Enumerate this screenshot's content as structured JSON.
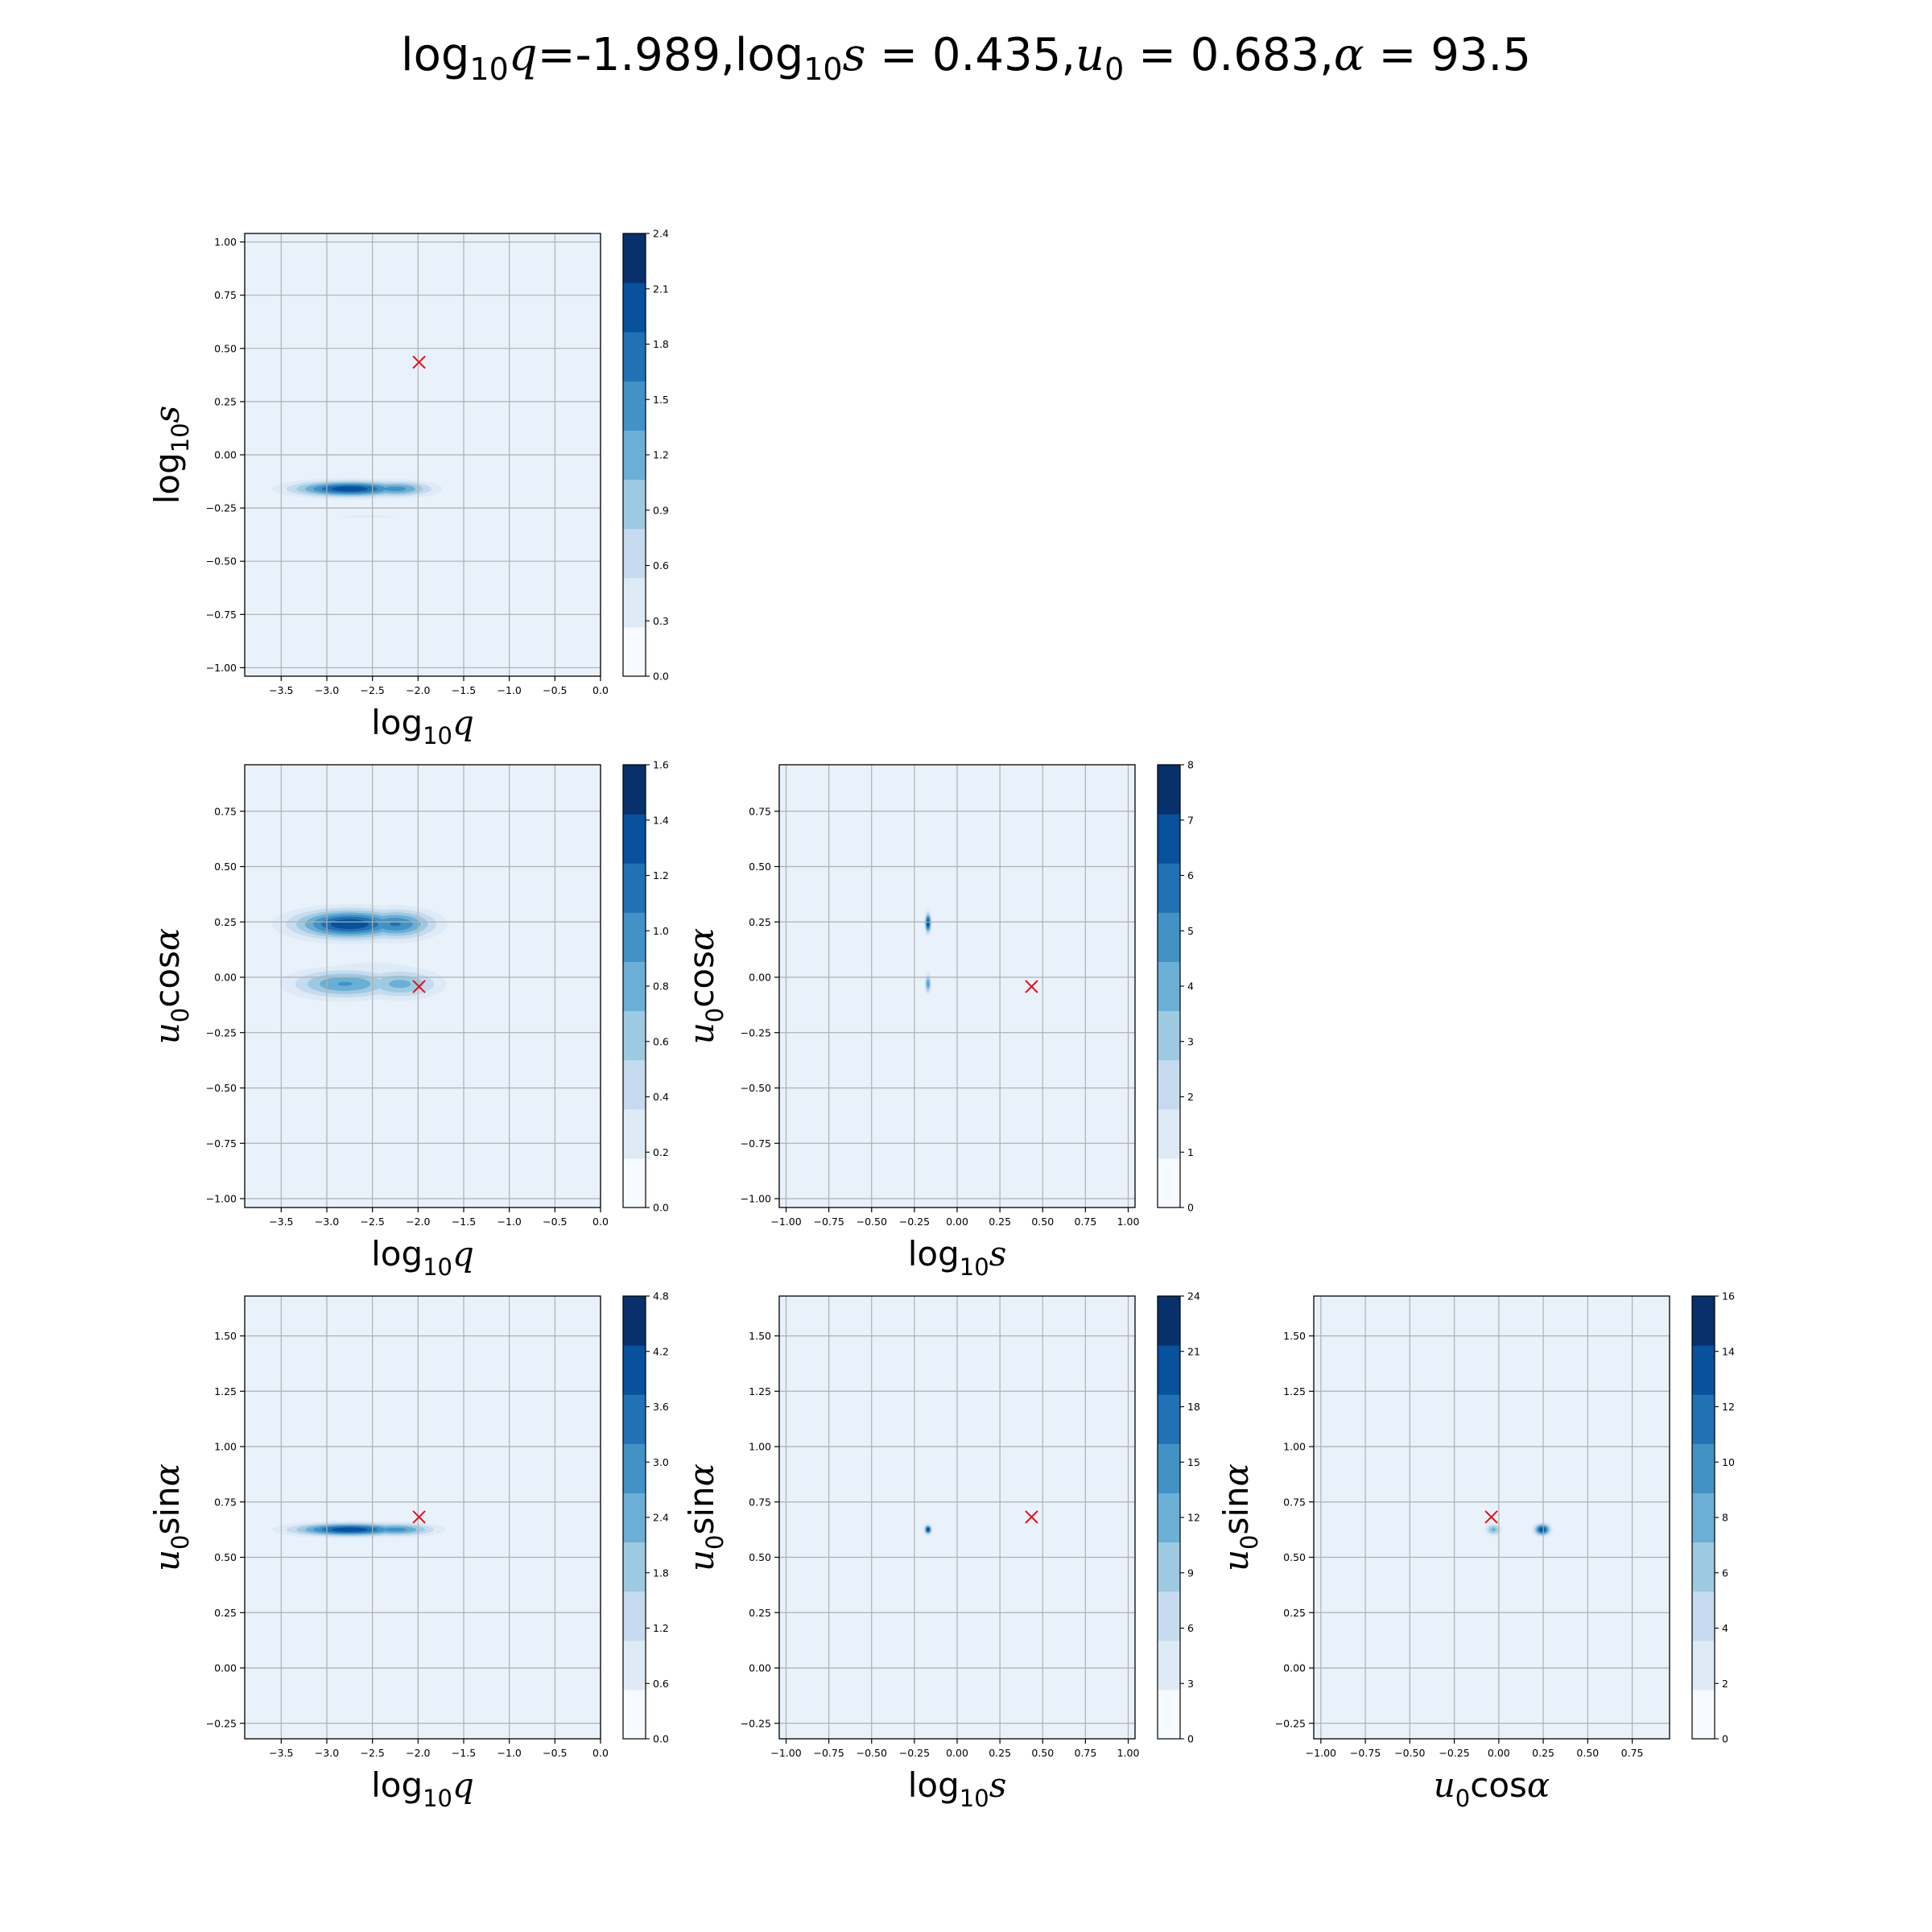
{
  "title": {
    "parts": [
      {
        "t": "log",
        "s": "n"
      },
      {
        "t": "10",
        "s": "sub"
      },
      {
        "t": "q",
        "s": "i"
      },
      {
        "t": "=-1.989,",
        "s": "n"
      },
      {
        "t": "log",
        "s": "n"
      },
      {
        "t": "10",
        "s": "sub"
      },
      {
        "t": "s",
        "s": "i"
      },
      {
        "t": " = 0.435,",
        "s": "n"
      },
      {
        "t": "u",
        "s": "i"
      },
      {
        "t": "0",
        "s": "sub"
      },
      {
        "t": " = 0.683,",
        "s": "n"
      },
      {
        "t": "α",
        "s": "i"
      },
      {
        "t": " = 93.5",
        "s": "n"
      }
    ]
  },
  "colors": {
    "levels": [
      "#f7fbff",
      "#deebf7",
      "#c6dbef",
      "#9ecae1",
      "#6baed6",
      "#4292c6",
      "#2171b5",
      "#08519c",
      "#08306b"
    ],
    "background": "#e9f1fa",
    "grid": "#b0b0b0",
    "marker": "#e0101a"
  },
  "chart_data": [
    {
      "type": "contour",
      "id": "q-s",
      "row": 0,
      "col": 0,
      "xlabel": [
        {
          "t": "log",
          "s": "n"
        },
        {
          "t": "10",
          "s": "sub"
        },
        {
          "t": "q",
          "s": "i"
        }
      ],
      "ylabel": [
        {
          "t": "log",
          "s": "n"
        },
        {
          "t": "10",
          "s": "sub"
        },
        {
          "t": "s",
          "s": "i"
        }
      ],
      "xlim": [
        -3.9,
        0.0
      ],
      "ylim": [
        -1.04,
        1.04
      ],
      "xticks": [
        -3.5,
        -3.0,
        -2.5,
        -2.0,
        -1.5,
        -1.0,
        -0.5,
        0.0
      ],
      "xticklabels": [
        "−3.5",
        "−3.0",
        "−2.5",
        "−2.0",
        "−1.5",
        "−1.0",
        "−0.5",
        "0.0"
      ],
      "yticks": [
        -1.0,
        -0.75,
        -0.5,
        -0.25,
        0.0,
        0.25,
        0.5,
        0.75,
        1.0
      ],
      "yticklabels": [
        "−1.00",
        "−0.75",
        "−0.50",
        "−0.25",
        "0.00",
        "0.25",
        "0.50",
        "0.75",
        "1.00"
      ],
      "colorbar": {
        "ticks": [
          0.0,
          0.3,
          0.6,
          0.9,
          1.2,
          1.5,
          1.8,
          2.1,
          2.4
        ],
        "ticklabels": [
          "0.0",
          "0.3",
          "0.6",
          "0.9",
          "1.2",
          "1.5",
          "1.8",
          "2.1",
          "2.4"
        ]
      },
      "blobs": [
        {
          "x": -2.75,
          "y": -0.16,
          "wx": 0.42,
          "wy": 0.025,
          "peak": 2.3
        },
        {
          "x": -2.25,
          "y": -0.16,
          "wx": 0.28,
          "wy": 0.025,
          "peak": 1.6
        },
        {
          "x": -2.55,
          "y": -0.29,
          "wx": 0.5,
          "wy": 0.008,
          "peak": 0.35
        }
      ],
      "marker": {
        "x": -1.989,
        "y": 0.435
      }
    },
    {
      "type": "contour",
      "id": "q-ucos",
      "row": 1,
      "col": 0,
      "xlabel": [
        {
          "t": "log",
          "s": "n"
        },
        {
          "t": "10",
          "s": "sub"
        },
        {
          "t": "q",
          "s": "i"
        }
      ],
      "ylabel": [
        {
          "t": "u",
          "s": "i"
        },
        {
          "t": "0",
          "s": "sub"
        },
        {
          "t": "cos",
          "s": "n"
        },
        {
          "t": "α",
          "s": "i"
        }
      ],
      "xlim": [
        -3.9,
        0.0
      ],
      "ylim": [
        -1.04,
        0.96
      ],
      "xticks": [
        -3.5,
        -3.0,
        -2.5,
        -2.0,
        -1.5,
        -1.0,
        -0.5,
        0.0
      ],
      "xticklabels": [
        "−3.5",
        "−3.0",
        "−2.5",
        "−2.0",
        "−1.5",
        "−1.0",
        "−0.5",
        "0.0"
      ],
      "yticks": [
        -1.0,
        -0.75,
        -0.5,
        -0.25,
        0.0,
        0.25,
        0.5,
        0.75
      ],
      "yticklabels": [
        "−1.00",
        "−0.75",
        "−0.50",
        "−0.25",
        "0.00",
        "0.25",
        "0.50",
        "0.75"
      ],
      "colorbar": {
        "ticks": [
          0.0,
          0.2,
          0.4,
          0.6,
          0.8,
          1.0,
          1.2,
          1.4,
          1.6
        ],
        "ticklabels": [
          "0.0",
          "0.2",
          "0.4",
          "0.6",
          "0.8",
          "1.0",
          "1.2",
          "1.4",
          "1.6"
        ]
      },
      "blobs": [
        {
          "x": -2.75,
          "y": 0.24,
          "wx": 0.42,
          "wy": 0.045,
          "peak": 1.55
        },
        {
          "x": -2.25,
          "y": 0.24,
          "wx": 0.3,
          "wy": 0.045,
          "peak": 1.2
        },
        {
          "x": -2.8,
          "y": -0.03,
          "wx": 0.4,
          "wy": 0.045,
          "peak": 1.0
        },
        {
          "x": -2.2,
          "y": -0.03,
          "wx": 0.3,
          "wy": 0.045,
          "peak": 0.85
        },
        {
          "x": -2.5,
          "y": 0.02,
          "wx": 0.55,
          "wy": 0.05,
          "peak": 0.3
        }
      ],
      "marker": {
        "x": -1.989,
        "y": -0.042
      }
    },
    {
      "type": "contour",
      "id": "s-ucos",
      "row": 1,
      "col": 1,
      "xlabel": [
        {
          "t": "log",
          "s": "n"
        },
        {
          "t": "10",
          "s": "sub"
        },
        {
          "t": "s",
          "s": "i"
        }
      ],
      "ylabel": [
        {
          "t": "u",
          "s": "i"
        },
        {
          "t": "0",
          "s": "sub"
        },
        {
          "t": "cos",
          "s": "n"
        },
        {
          "t": "α",
          "s": "i"
        }
      ],
      "xlim": [
        -1.04,
        1.04
      ],
      "ylim": [
        -1.04,
        0.96
      ],
      "xticks": [
        -1.0,
        -0.75,
        -0.5,
        -0.25,
        0.0,
        0.25,
        0.5,
        0.75,
        1.0
      ],
      "xticklabels": [
        "−1.00",
        "−0.75",
        "−0.50",
        "−0.25",
        "0.00",
        "0.25",
        "0.50",
        "0.75",
        "1.00"
      ],
      "yticks": [
        -1.0,
        -0.75,
        -0.5,
        -0.25,
        0.0,
        0.25,
        0.5,
        0.75
      ],
      "yticklabels": [
        "−1.00",
        "−0.75",
        "−0.50",
        "−0.25",
        "0.00",
        "0.25",
        "0.50",
        "0.75"
      ],
      "colorbar": {
        "ticks": [
          0,
          1,
          2,
          3,
          4,
          5,
          6,
          7,
          8
        ],
        "ticklabels": [
          "0",
          "1",
          "2",
          "3",
          "4",
          "5",
          "6",
          "7",
          "8"
        ]
      },
      "blobs": [
        {
          "x": -0.17,
          "y": 0.245,
          "wx": 0.012,
          "wy": 0.03,
          "peak": 7.8
        },
        {
          "x": -0.17,
          "y": -0.03,
          "wx": 0.012,
          "wy": 0.03,
          "peak": 5.0
        },
        {
          "x": -0.17,
          "y": 0.02,
          "wx": 0.012,
          "wy": 0.06,
          "peak": 1.0
        },
        {
          "x": -0.3,
          "y": 0.245,
          "wx": 0.004,
          "wy": 0.02,
          "peak": 0.6
        }
      ],
      "marker": {
        "x": 0.435,
        "y": -0.042
      }
    },
    {
      "type": "contour",
      "id": "q-usin",
      "row": 2,
      "col": 0,
      "xlabel": [
        {
          "t": "log",
          "s": "n"
        },
        {
          "t": "10",
          "s": "sub"
        },
        {
          "t": "q",
          "s": "i"
        }
      ],
      "ylabel": [
        {
          "t": "u",
          "s": "i"
        },
        {
          "t": "0",
          "s": "sub"
        },
        {
          "t": "sin",
          "s": "n"
        },
        {
          "t": "α",
          "s": "i"
        }
      ],
      "xlim": [
        -3.9,
        0.0
      ],
      "ylim": [
        -0.32,
        1.68
      ],
      "xticks": [
        -3.5,
        -3.0,
        -2.5,
        -2.0,
        -1.5,
        -1.0,
        -0.5,
        0.0
      ],
      "xticklabels": [
        "−3.5",
        "−3.0",
        "−2.5",
        "−2.0",
        "−1.5",
        "−1.0",
        "−0.5",
        "0.0"
      ],
      "yticks": [
        -0.25,
        0.0,
        0.25,
        0.5,
        0.75,
        1.0,
        1.25,
        1.5
      ],
      "yticklabels": [
        "−0.25",
        "0.00",
        "0.25",
        "0.50",
        "0.75",
        "1.00",
        "1.25",
        "1.50"
      ],
      "colorbar": {
        "ticks": [
          0.0,
          0.6,
          1.2,
          1.8,
          2.4,
          3.0,
          3.6,
          4.2,
          4.8
        ],
        "ticklabels": [
          "0.0",
          "0.6",
          "1.2",
          "1.8",
          "2.4",
          "3.0",
          "3.6",
          "4.2",
          "4.8"
        ]
      },
      "blobs": [
        {
          "x": -2.75,
          "y": 0.625,
          "wx": 0.42,
          "wy": 0.02,
          "peak": 4.6
        },
        {
          "x": -2.25,
          "y": 0.625,
          "wx": 0.3,
          "wy": 0.02,
          "peak": 3.2
        }
      ],
      "marker": {
        "x": -1.989,
        "y": 0.682
      }
    },
    {
      "type": "contour",
      "id": "s-usin",
      "row": 2,
      "col": 1,
      "xlabel": [
        {
          "t": "log",
          "s": "n"
        },
        {
          "t": "10",
          "s": "sub"
        },
        {
          "t": "s",
          "s": "i"
        }
      ],
      "ylabel": [
        {
          "t": "u",
          "s": "i"
        },
        {
          "t": "0",
          "s": "sub"
        },
        {
          "t": "sin",
          "s": "n"
        },
        {
          "t": "α",
          "s": "i"
        }
      ],
      "xlim": [
        -1.04,
        1.04
      ],
      "ylim": [
        -0.32,
        1.68
      ],
      "xticks": [
        -1.0,
        -0.75,
        -0.5,
        -0.25,
        0.0,
        0.25,
        0.5,
        0.75,
        1.0
      ],
      "xticklabels": [
        "−1.00",
        "−0.75",
        "−0.50",
        "−0.25",
        "0.00",
        "0.25",
        "0.50",
        "0.75",
        "1.00"
      ],
      "yticks": [
        -0.25,
        0.0,
        0.25,
        0.5,
        0.75,
        1.0,
        1.25,
        1.5
      ],
      "yticklabels": [
        "−0.25",
        "0.00",
        "0.25",
        "0.50",
        "0.75",
        "1.00",
        "1.25",
        "1.50"
      ],
      "colorbar": {
        "ticks": [
          0,
          3,
          6,
          9,
          12,
          15,
          18,
          21,
          24
        ],
        "ticklabels": [
          "0",
          "3",
          "6",
          "9",
          "12",
          "15",
          "18",
          "21",
          "24"
        ]
      },
      "blobs": [
        {
          "x": -0.17,
          "y": 0.625,
          "wx": 0.014,
          "wy": 0.014,
          "peak": 23
        },
        {
          "x": -0.3,
          "y": 0.625,
          "wx": 0.004,
          "wy": 0.01,
          "peak": 1.5
        }
      ],
      "marker": {
        "x": 0.435,
        "y": 0.682
      }
    },
    {
      "type": "contour",
      "id": "ucos-usin",
      "row": 2,
      "col": 2,
      "xlabel": [
        {
          "t": "u",
          "s": "i"
        },
        {
          "t": "0",
          "s": "sub"
        },
        {
          "t": "cos",
          "s": "n"
        },
        {
          "t": "α",
          "s": "i"
        }
      ],
      "ylabel": [
        {
          "t": "u",
          "s": "i"
        },
        {
          "t": "0",
          "s": "sub"
        },
        {
          "t": "sin",
          "s": "n"
        },
        {
          "t": "α",
          "s": "i"
        }
      ],
      "xlim": [
        -1.04,
        0.96
      ],
      "ylim": [
        -0.32,
        1.68
      ],
      "xticks": [
        -1.0,
        -0.75,
        -0.5,
        -0.25,
        0.0,
        0.25,
        0.5,
        0.75
      ],
      "xticklabels": [
        "−1.00",
        "−0.75",
        "−0.50",
        "−0.25",
        "0.00",
        "0.25",
        "0.50",
        "0.75"
      ],
      "yticks": [
        -0.25,
        0.0,
        0.25,
        0.5,
        0.75,
        1.0,
        1.25,
        1.5
      ],
      "yticklabels": [
        "−0.25",
        "0.00",
        "0.25",
        "0.50",
        "0.75",
        "1.00",
        "1.25",
        "1.50"
      ],
      "colorbar": {
        "ticks": [
          0,
          2,
          4,
          6,
          8,
          10,
          12,
          14,
          16
        ],
        "ticklabels": [
          "0",
          "2",
          "4",
          "6",
          "8",
          "10",
          "12",
          "14",
          "16"
        ]
      },
      "blobs": [
        {
          "x": 0.245,
          "y": 0.625,
          "wx": 0.03,
          "wy": 0.018,
          "peak": 15.5
        },
        {
          "x": -0.03,
          "y": 0.625,
          "wx": 0.03,
          "wy": 0.018,
          "peak": 8.5
        },
        {
          "x": 0.02,
          "y": 0.625,
          "wx": 0.06,
          "wy": 0.02,
          "peak": 1.5
        }
      ],
      "marker": {
        "x": -0.042,
        "y": 0.682
      }
    }
  ]
}
